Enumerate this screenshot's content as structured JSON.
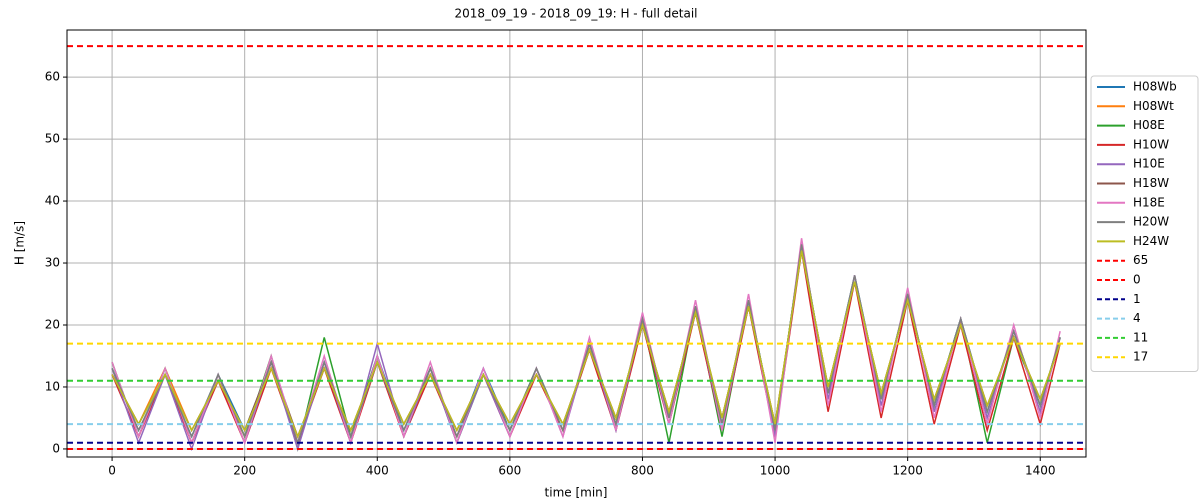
{
  "chart_data": {
    "type": "line",
    "title": "2018_09_19 - 2018_09_19: H - full detail",
    "xlabel": "time [min]",
    "ylabel": "H [m/s]",
    "x": [
      0,
      40,
      80,
      120,
      160,
      200,
      240,
      280,
      320,
      360,
      400,
      440,
      480,
      520,
      560,
      600,
      640,
      680,
      720,
      760,
      800,
      840,
      880,
      920,
      960,
      1000,
      1040,
      1080,
      1120,
      1160,
      1200,
      1240,
      1280,
      1320,
      1360,
      1400,
      1430
    ],
    "series": [
      {
        "name": "H08Wb",
        "color": "#1f77b4",
        "values": [
          13,
          3,
          12,
          2,
          12,
          3,
          14,
          1,
          14,
          2,
          15,
          3,
          13,
          2,
          13,
          3,
          13,
          3,
          17,
          4,
          21,
          5,
          23,
          4,
          24,
          3,
          33,
          9,
          28,
          8,
          25,
          7,
          21,
          6,
          19,
          7,
          18
        ]
      },
      {
        "name": "H08Wt",
        "color": "#ff7f0e",
        "values": [
          12,
          4,
          13,
          3,
          11,
          2,
          13,
          2,
          13,
          3,
          14,
          4,
          12,
          3,
          12,
          4,
          12,
          4,
          16,
          5,
          20,
          6,
          22,
          5,
          23,
          4,
          32,
          10,
          27,
          9,
          24,
          8,
          20,
          7,
          18,
          8,
          17
        ]
      },
      {
        "name": "H08E",
        "color": "#2ca02c",
        "values": [
          14,
          2,
          13,
          1,
          12,
          2,
          15,
          0,
          18,
          2,
          15,
          2,
          13,
          1,
          12,
          3,
          13,
          3,
          17,
          4,
          21,
          1,
          23,
          2,
          24,
          3,
          33,
          9,
          27,
          8,
          25,
          7,
          21,
          1,
          18,
          7,
          18
        ]
      },
      {
        "name": "H10W",
        "color": "#d62728",
        "values": [
          12,
          2,
          12,
          1,
          11,
          1,
          13,
          1,
          13,
          1,
          14,
          2,
          12,
          2,
          12,
          2,
          12,
          3,
          16,
          3,
          20,
          4,
          22,
          3,
          23,
          2,
          32,
          6,
          27,
          5,
          24,
          4,
          20,
          3,
          18,
          4,
          17
        ]
      },
      {
        "name": "H10E",
        "color": "#9467bd",
        "values": [
          13,
          1,
          12,
          0,
          12,
          1,
          14,
          0,
          14,
          1,
          17,
          2,
          13,
          1,
          12,
          2,
          13,
          2,
          17,
          3,
          21,
          4,
          23,
          3,
          24,
          2,
          33,
          8,
          28,
          7,
          25,
          6,
          21,
          5,
          19,
          6,
          18
        ]
      },
      {
        "name": "H18W",
        "color": "#8c564b",
        "values": [
          12,
          4,
          12,
          3,
          11,
          3,
          14,
          2,
          13,
          3,
          14,
          4,
          12,
          3,
          12,
          4,
          12,
          4,
          16,
          5,
          20,
          6,
          22,
          5,
          23,
          4,
          32,
          10,
          27,
          9,
          24,
          8,
          20,
          7,
          18,
          8,
          17
        ]
      },
      {
        "name": "H18E",
        "color": "#e377c2",
        "values": [
          14,
          2,
          13,
          1,
          12,
          1,
          15,
          1,
          15,
          1,
          15,
          2,
          14,
          1,
          13,
          2,
          13,
          2,
          18,
          3,
          22,
          4,
          24,
          3,
          25,
          1,
          34,
          7,
          28,
          6,
          26,
          5,
          21,
          4,
          20,
          5,
          19
        ]
      },
      {
        "name": "H20W",
        "color": "#7f7f7f",
        "values": [
          13,
          3,
          12,
          2,
          12,
          2,
          14,
          1,
          14,
          2,
          14,
          3,
          13,
          2,
          12,
          3,
          13,
          3,
          17,
          4,
          21,
          5,
          23,
          4,
          24,
          3,
          33,
          9,
          28,
          8,
          25,
          7,
          21,
          6,
          19,
          7,
          18
        ]
      },
      {
        "name": "H24W",
        "color": "#bcbd22",
        "values": [
          12,
          4,
          12,
          3,
          11,
          3,
          13,
          2,
          13,
          3,
          14,
          4,
          12,
          3,
          12,
          4,
          12,
          4,
          16,
          5,
          20,
          6,
          22,
          5,
          23,
          4,
          32,
          10,
          27,
          9,
          24,
          8,
          20,
          7,
          18,
          8,
          17
        ]
      }
    ],
    "hlines": [
      {
        "name": "65",
        "value": 65,
        "color": "#ff0000"
      },
      {
        "name": "0",
        "value": 0,
        "color": "#ff0000"
      },
      {
        "name": "1",
        "value": 1,
        "color": "#00008b"
      },
      {
        "name": "4",
        "value": 4,
        "color": "#87ceeb"
      },
      {
        "name": "11",
        "value": 11,
        "color": "#32cd32"
      },
      {
        "name": "17",
        "value": 17,
        "color": "#ffd700"
      }
    ],
    "xlim": [
      -68,
      1469
    ],
    "ylim": [
      -1.3,
      67.6
    ],
    "xticks": [
      0,
      200,
      400,
      600,
      800,
      1000,
      1200,
      1400
    ],
    "yticks": [
      0,
      10,
      20,
      30,
      40,
      50,
      60
    ],
    "grid": true,
    "legend": "outside right"
  }
}
